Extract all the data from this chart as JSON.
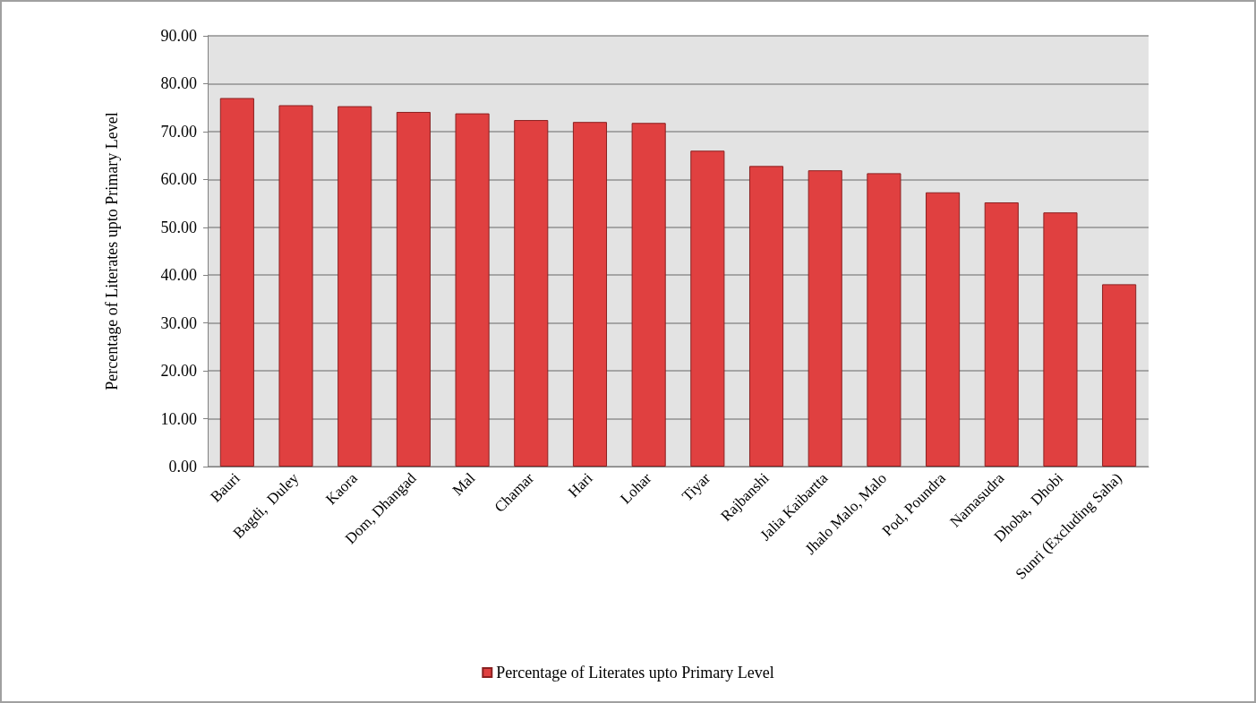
{
  "chart_data": {
    "type": "bar",
    "ylabel": "Percentage of Literates upto Primary Level",
    "categories": [
      "Bauri",
      "Bagdi,  Duley",
      "Kaora",
      "Dom, Dhangad",
      "Mal",
      "Chamar",
      "Hari",
      "Lohar",
      "Tiyar",
      "Rajbanshi",
      "Jalia Kaibartta",
      "Jhalo Malo, Malo",
      "Pod, Poundra",
      "Namasudra",
      "Dhoba,  Dhobi",
      "Sunri (Excluding Saha)"
    ],
    "series": [
      {
        "name": "Percentage of Literates upto Primary Level",
        "color": "#e04040",
        "values": [
          77.0,
          75.5,
          75.3,
          74.1,
          73.8,
          72.4,
          72.0,
          71.8,
          66.0,
          62.8,
          61.9,
          61.3,
          57.3,
          55.2,
          53.1,
          38.1
        ]
      }
    ],
    "ylim": [
      0,
      90
    ],
    "yticks": [
      {
        "value": 0,
        "label": "0.00"
      },
      {
        "value": 10,
        "label": "10.00"
      },
      {
        "value": 20,
        "label": "20.00"
      },
      {
        "value": 30,
        "label": "30.00"
      },
      {
        "value": 40,
        "label": "40.00"
      },
      {
        "value": 50,
        "label": "50.00"
      },
      {
        "value": 60,
        "label": "60.00"
      },
      {
        "value": 70,
        "label": "70.00"
      },
      {
        "value": 80,
        "label": "80.00"
      },
      {
        "value": 90,
        "label": "90.00"
      }
    ],
    "grid": "y",
    "legend": "bottom"
  }
}
